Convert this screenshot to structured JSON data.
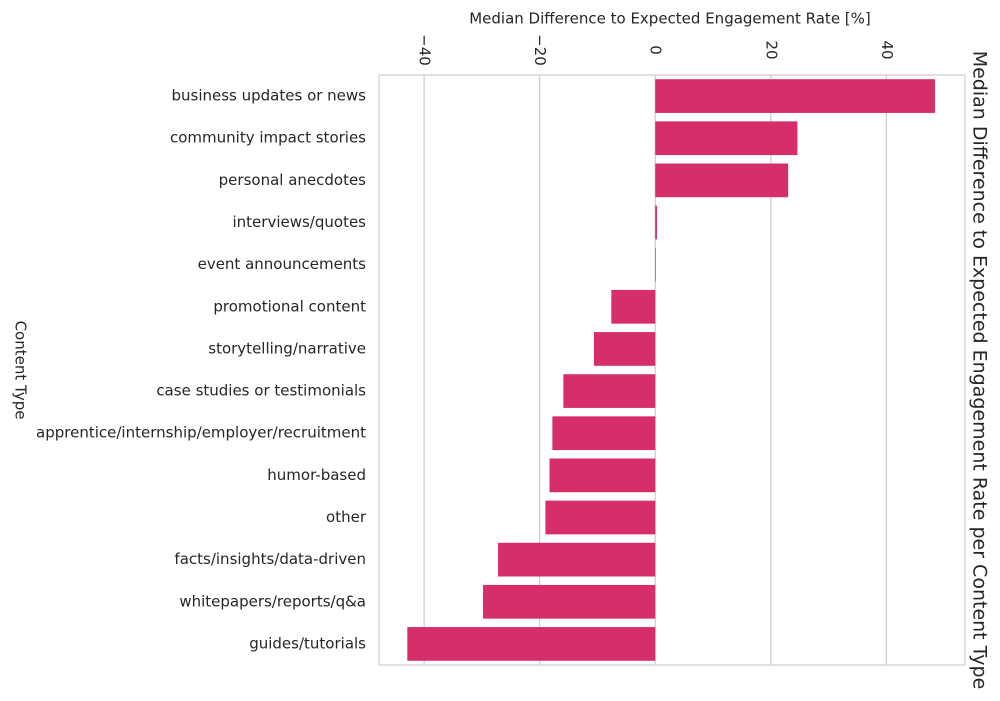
{
  "chart_data": {
    "type": "bar",
    "orientation": "horizontal",
    "title": "Median Difference to Expected Engagement Rate per Content Type",
    "xlabel": "Median Difference to Expected Engagement Rate [%]",
    "ylabel": "Content Type",
    "categories": [
      "business updates or news",
      "community impact stories",
      "personal anecdotes",
      "interviews/quotes",
      "event announcements",
      "promotional content",
      "storytelling/narrative",
      "case studies or testimonials",
      "apprentice/internship/employer/recruitment",
      "humor-based",
      "other",
      "facts/insights/data-driven",
      "whitepapers/reports/q&a",
      "guides/tutorials"
    ],
    "values": [
      48.4,
      24.6,
      23.0,
      0.3,
      0.1,
      -7.6,
      -10.6,
      -15.9,
      -17.8,
      -18.3,
      -19.0,
      -27.2,
      -29.8,
      -42.9
    ],
    "color": "#d62d6b",
    "xlim": [
      -47.8,
      53.6
    ],
    "xticks": [
      {
        "value": -40,
        "label": "−40"
      },
      {
        "value": -20,
        "label": "−20"
      },
      0,
      20,
      40
    ],
    "grid": true
  }
}
